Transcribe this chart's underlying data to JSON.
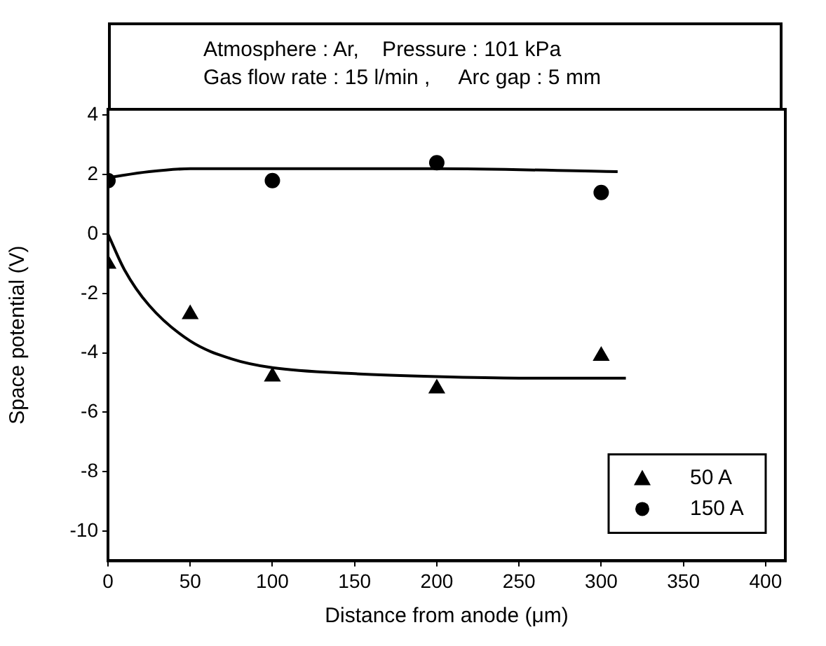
{
  "chart_data": {
    "type": "scatter",
    "xlabel": "Distance from anode (μm)",
    "ylabel": "Space potential (V)",
    "annotations": [
      "Atmosphere : Ar,    Pressure : 101 kPa",
      "Gas flow rate : 15 l/min ,     Arc gap : 5 mm"
    ],
    "xlim": [
      0,
      412
    ],
    "xticks": [
      0,
      50,
      100,
      150,
      200,
      250,
      300,
      350,
      400
    ],
    "ylim": [
      -11,
      4.2
    ],
    "yticks": [
      -10,
      -8,
      -6,
      -4,
      -2,
      0,
      2,
      4
    ],
    "grid": false,
    "legend": "bottom right",
    "series": [
      {
        "name": "50 A",
        "color": "#000000",
        "marker": "triangle",
        "x": [
          0,
          50,
          100,
          200,
          300
        ],
        "values": [
          -1.0,
          -2.7,
          -4.8,
          -5.2,
          -4.1
        ]
      },
      {
        "name": "150 A",
        "color": "#000000",
        "marker": "circle",
        "x": [
          0,
          100,
          200,
          300
        ],
        "values": [
          1.8,
          1.8,
          2.4,
          1.4
        ]
      },
      {
        "type": "line",
        "color": "#000000",
        "marker": "none",
        "x": [
          0,
          10,
          25,
          50,
          75,
          100,
          150,
          200,
          250,
          315
        ],
        "values": [
          0,
          -1.2,
          -2.4,
          -3.6,
          -4.2,
          -4.5,
          -4.7,
          -4.8,
          -4.85,
          -4.85
        ]
      },
      {
        "type": "line",
        "color": "#000000",
        "marker": "none",
        "x": [
          0,
          25,
          50,
          100,
          200,
          310
        ],
        "values": [
          1.9,
          2.1,
          2.2,
          2.2,
          2.2,
          2.1
        ]
      }
    ]
  }
}
